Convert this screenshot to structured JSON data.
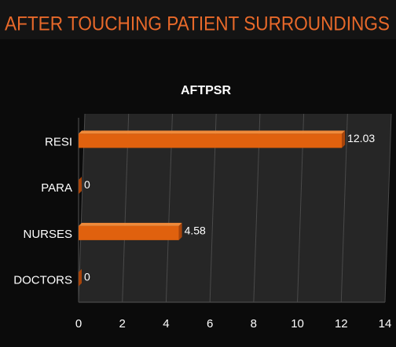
{
  "header": {
    "title": "AFTER TOUCHING PATIENT SURROUNDINGS"
  },
  "chart_data": {
    "type": "hbar",
    "title": "AFTPSR",
    "categories": [
      "RESI",
      "PARA",
      "NURSES",
      "DOCTORS"
    ],
    "values": [
      12.03,
      0,
      4.58,
      0
    ],
    "color": "#e0610e",
    "xlim": [
      0,
      14
    ],
    "xticks": [
      0,
      2,
      4,
      6,
      8,
      10,
      12,
      14
    ],
    "grid": true
  }
}
